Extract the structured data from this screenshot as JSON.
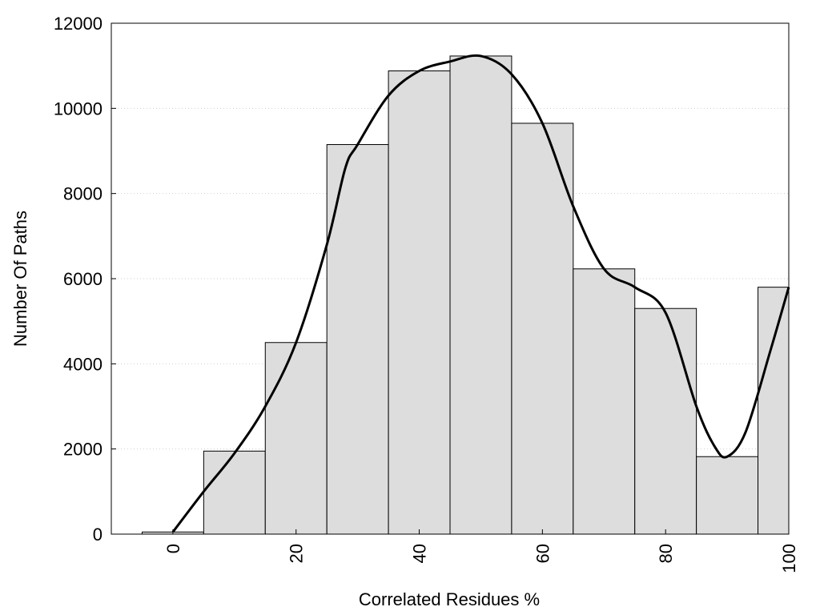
{
  "chart_data": {
    "type": "bar",
    "title": "",
    "xlabel": "Correlated Residues %",
    "ylabel": "Number Of Paths",
    "xlim": [
      -10,
      100
    ],
    "ylim": [
      0,
      12000
    ],
    "x_ticks": [
      0,
      20,
      40,
      60,
      80,
      100
    ],
    "y_ticks": [
      0,
      2000,
      4000,
      6000,
      8000,
      10000,
      12000
    ],
    "grid": "horizontal dotted",
    "bar_width": 10,
    "bar_color": "#dddddd",
    "bar_edge_color": "#000000",
    "line_color": "#000000",
    "bars": [
      {
        "x": 0,
        "value": 50
      },
      {
        "x": 10,
        "value": 1950
      },
      {
        "x": 20,
        "value": 4500
      },
      {
        "x": 30,
        "value": 9150
      },
      {
        "x": 40,
        "value": 10880
      },
      {
        "x": 50,
        "value": 11230
      },
      {
        "x": 60,
        "value": 9650
      },
      {
        "x": 70,
        "value": 6230
      },
      {
        "x": 80,
        "value": 5300
      },
      {
        "x": 90,
        "value": 1820
      },
      {
        "x": 100,
        "value": 5800
      }
    ],
    "smooth_line": [
      {
        "x": 0,
        "y": 50
      },
      {
        "x": 5,
        "y": 1000
      },
      {
        "x": 10,
        "y": 1900
      },
      {
        "x": 15,
        "y": 3000
      },
      {
        "x": 20,
        "y": 4500
      },
      {
        "x": 25,
        "y": 6800
      },
      {
        "x": 28,
        "y": 8600
      },
      {
        "x": 30,
        "y": 9150
      },
      {
        "x": 35,
        "y": 10300
      },
      {
        "x": 40,
        "y": 10880
      },
      {
        "x": 45,
        "y": 11100
      },
      {
        "x": 50,
        "y": 11230
      },
      {
        "x": 55,
        "y": 10800
      },
      {
        "x": 60,
        "y": 9650
      },
      {
        "x": 65,
        "y": 7700
      },
      {
        "x": 70,
        "y": 6230
      },
      {
        "x": 75,
        "y": 5800
      },
      {
        "x": 80,
        "y": 5200
      },
      {
        "x": 85,
        "y": 3000
      },
      {
        "x": 88,
        "y": 2050
      },
      {
        "x": 90,
        "y": 1820
      },
      {
        "x": 93,
        "y": 2400
      },
      {
        "x": 97,
        "y": 4300
      },
      {
        "x": 100,
        "y": 5800
      }
    ]
  }
}
